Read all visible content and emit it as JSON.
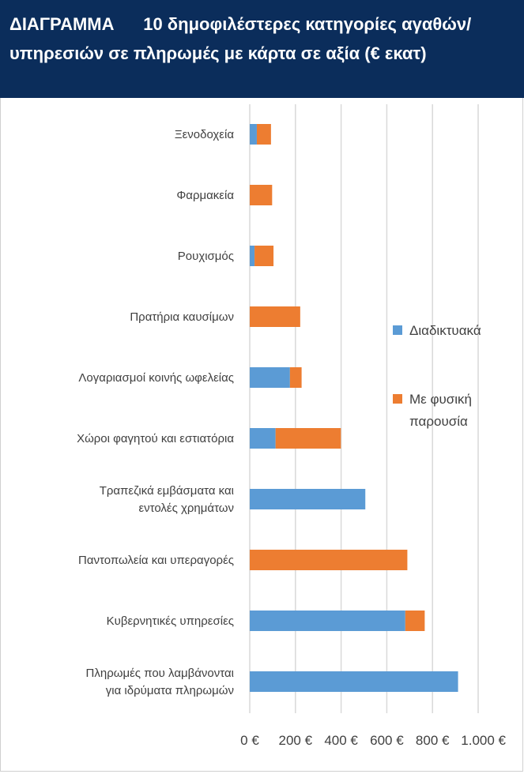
{
  "header": {
    "label": "ΔΙΑΓΡΑΜΜΑ",
    "title": "10 δημοφιλέστερες κατηγορίες αγαθών/υπηρεσιών σε πληρωμές με κάρτα σε αξία (€ εκατ)"
  },
  "chart_data": {
    "type": "bar",
    "orientation": "horizontal",
    "stacked": true,
    "title": "10 δημοφιλέστερες κατηγορίες αγαθών/υπηρεσιών σε πληρωμές με κάρτα σε αξία (€ εκατ)",
    "categories": [
      [
        "Ξενοδοχεία"
      ],
      [
        "Φαρμακεία"
      ],
      [
        "Ρουχισμός"
      ],
      [
        "Πρατήρια καυσίμων"
      ],
      [
        "Λογαριασμοί κοινής ωφελείας"
      ],
      [
        "Χώροι φαγητού και εστιατόρια"
      ],
      [
        "Τραπεζικά εμβάσματα και",
        "εντολές χρημάτων"
      ],
      [
        "Παντοπωλεία και υπεραγορές"
      ],
      [
        "Κυβερνητικές υπηρεσίες"
      ],
      [
        "Πληρωμές που λαμβάνονται",
        "για ιδρύματα πληρωμών"
      ]
    ],
    "series": [
      {
        "name": "Διαδικτυακά",
        "color": "#5b9bd5",
        "values": [
          31,
          0,
          21,
          0,
          176,
          113,
          506,
          0,
          681,
          912
        ]
      },
      {
        "name": "Με φυσική παρουσία",
        "name_lines": [
          "Με φυσική",
          "παρουσία"
        ],
        "color": "#ed7d31",
        "values": [
          62,
          98,
          83,
          221,
          51,
          286,
          0,
          690,
          85,
          0
        ]
      }
    ],
    "xlim": [
      0,
      1000
    ],
    "xticks": [
      0,
      200,
      400,
      600,
      800,
      1000
    ],
    "xtick_labels": [
      "0 €",
      "200 €",
      "400 €",
      "600 €",
      "800 €",
      "1.000 €"
    ],
    "grid": true,
    "legend_position": "right"
  }
}
